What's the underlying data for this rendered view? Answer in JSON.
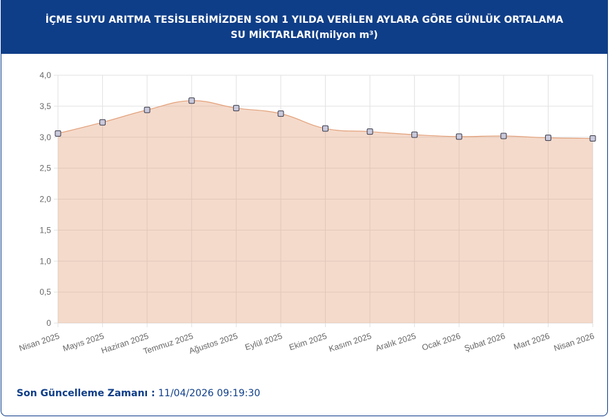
{
  "chart_data": {
    "type": "area",
    "title": "İÇME SUYU ARITMA TESİSLERİMİZDEN SON 1 YILDA VERİLEN AYLARA GÖRE GÜNLÜK ORTALAMA SU MİKTARLARI(milyon m³)",
    "categories": [
      "Nisan 2025",
      "Mayıs 2025",
      "Haziran 2025",
      "Temmuz 2025",
      "Ağustos 2025",
      "Eylül 2025",
      "Ekim 2025",
      "Kasım 2025",
      "Aralık 2025",
      "Ocak 2026",
      "Şubat 2026",
      "Mart 2026",
      "Nisan 2026"
    ],
    "values": [
      3.06,
      3.24,
      3.44,
      3.59,
      3.47,
      3.38,
      3.14,
      3.09,
      3.04,
      3.01,
      3.02,
      2.99,
      2.98
    ],
    "color": "#e3a27c",
    "ylim": [
      0,
      4
    ],
    "yticks": [
      0,
      {
        "value": 0.5,
        "label": "0,5"
      },
      {
        "value": 1,
        "label": "1,0"
      },
      {
        "value": 1.5,
        "label": "1,5"
      },
      {
        "value": 2,
        "label": "2,0"
      },
      {
        "value": 2.5,
        "label": "2,5"
      },
      {
        "value": 3,
        "label": "3,0"
      },
      {
        "value": 3.5,
        "label": "3,5"
      },
      {
        "value": 4,
        "label": "4,0"
      }
    ],
    "grid": true
  },
  "footer": {
    "label": "Son Güncelleme Zamanı :",
    "value": "11/04/2026 09:19:30"
  }
}
